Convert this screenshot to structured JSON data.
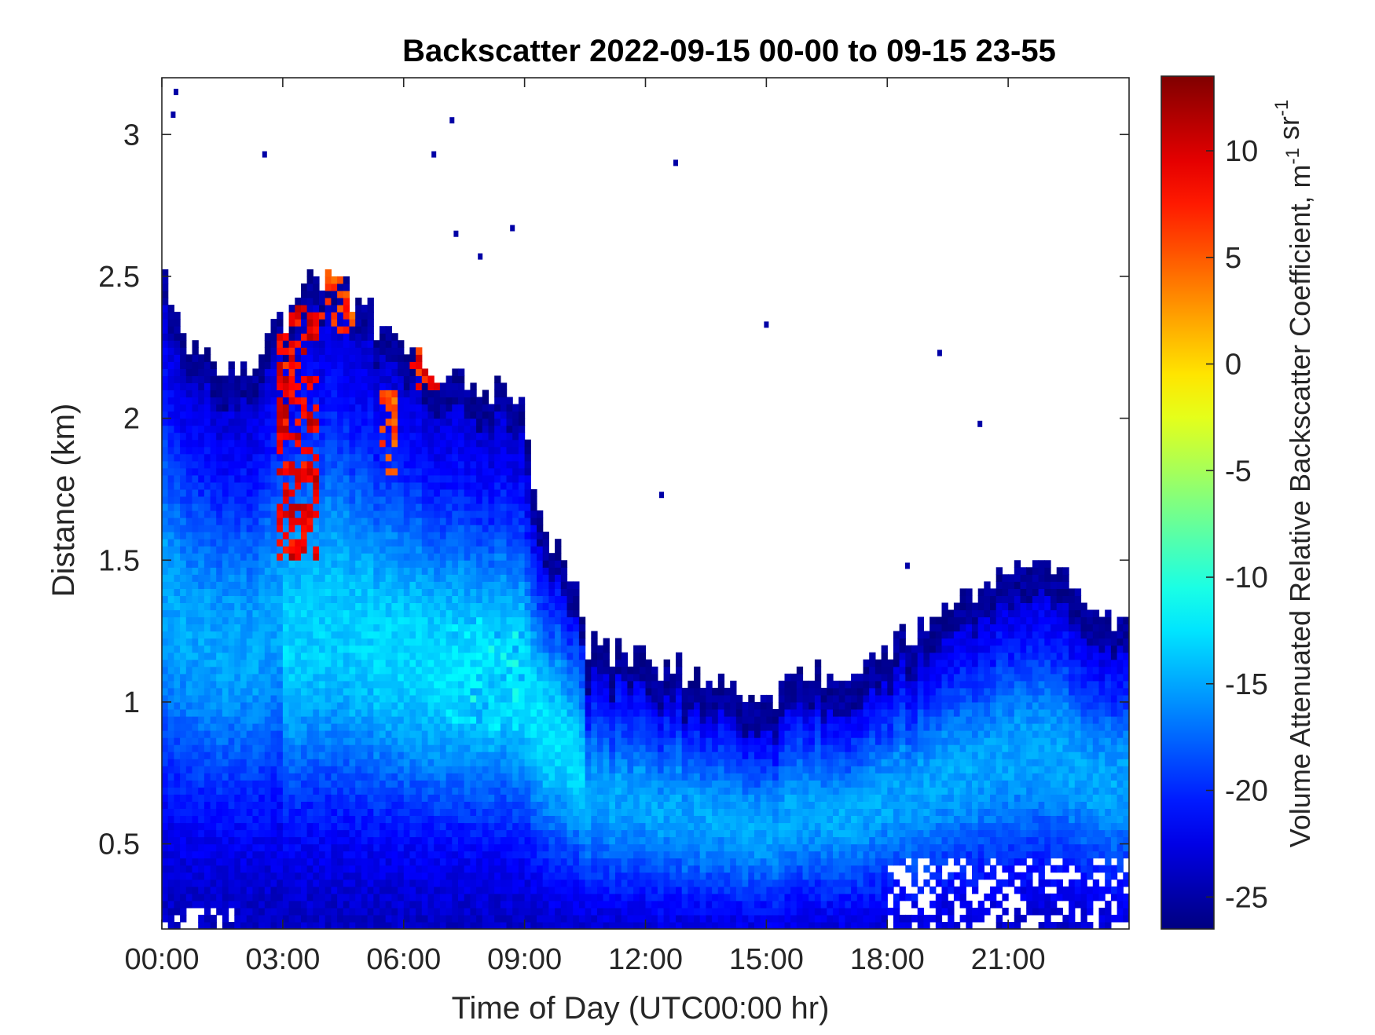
{
  "chart_data": {
    "type": "heatmap",
    "title": "Backscatter 2022-09-15 00-00 to 09-15 23-55",
    "xlabel": "Time of Day (UTC00:00 hr)",
    "ylabel": "Distance (km)",
    "colorbar_label": "Volume Attenuated Relative Backscatter Coefficient, m",
    "colorbar_label_units": [
      {
        "base": "m",
        "exp": "-1"
      },
      {
        "base": "sr",
        "exp": "-1"
      }
    ],
    "xlim": [
      0,
      24
    ],
    "ylim": [
      0.2,
      3.2
    ],
    "clim": [
      -26.5,
      13.5
    ],
    "colormap": "jet",
    "x_ticks": [
      {
        "value": 0,
        "label": "00:00"
      },
      {
        "value": 3,
        "label": "03:00"
      },
      {
        "value": 6,
        "label": "06:00"
      },
      {
        "value": 9,
        "label": "09:00"
      },
      {
        "value": 12,
        "label": "12:00"
      },
      {
        "value": 15,
        "label": "15:00"
      },
      {
        "value": 18,
        "label": "18:00"
      },
      {
        "value": 21,
        "label": "21:00"
      }
    ],
    "y_ticks": [
      {
        "value": 0.5,
        "label": "0.5"
      },
      {
        "value": 1,
        "label": "1"
      },
      {
        "value": 1.5,
        "label": "1.5"
      },
      {
        "value": 2,
        "label": "2"
      },
      {
        "value": 2.5,
        "label": "2.5"
      },
      {
        "value": 3,
        "label": "3"
      }
    ],
    "colorbar_ticks": [
      {
        "value": 10,
        "label": "10"
      },
      {
        "value": 5,
        "label": "5"
      },
      {
        "value": 0,
        "label": "0"
      },
      {
        "value": -5,
        "label": "-5"
      },
      {
        "value": -10,
        "label": "-10"
      },
      {
        "value": -15,
        "label": "-15"
      },
      {
        "value": -20,
        "label": "-20"
      },
      {
        "value": -25,
        "label": "-25"
      }
    ],
    "signal_top_profile_km": [
      [
        0.0,
        2.55
      ],
      [
        0.5,
        2.3
      ],
      [
        1.0,
        2.2
      ],
      [
        2.0,
        2.2
      ],
      [
        2.5,
        2.25
      ],
      [
        3.0,
        2.35
      ],
      [
        3.5,
        2.45
      ],
      [
        4.0,
        2.5
      ],
      [
        5.0,
        2.4
      ],
      [
        5.5,
        2.3
      ],
      [
        6.0,
        2.25
      ],
      [
        7.0,
        2.15
      ],
      [
        8.0,
        2.1
      ],
      [
        9.0,
        2.05
      ],
      [
        9.3,
        1.7
      ],
      [
        9.8,
        1.55
      ],
      [
        10.3,
        1.4
      ],
      [
        10.5,
        1.2
      ],
      [
        11.0,
        1.2
      ],
      [
        12.0,
        1.15
      ],
      [
        13.0,
        1.1
      ],
      [
        14.0,
        1.08
      ],
      [
        15.0,
        0.98
      ],
      [
        16.0,
        1.1
      ],
      [
        17.0,
        1.08
      ],
      [
        18.0,
        1.2
      ],
      [
        19.0,
        1.28
      ],
      [
        20.0,
        1.38
      ],
      [
        21.0,
        1.48
      ],
      [
        22.0,
        1.48
      ],
      [
        23.0,
        1.35
      ],
      [
        24.0,
        1.3
      ]
    ],
    "enhanced_layers": [
      {
        "x_from": 2.9,
        "x_to": 3.9,
        "y_from": 1.5,
        "y_to": 2.4,
        "value": 9
      },
      {
        "x_from": 3.9,
        "x_to": 4.8,
        "y_from": 2.3,
        "y_to": 2.55,
        "value": 6
      },
      {
        "x_from": 5.4,
        "x_to": 5.8,
        "y_from": 1.8,
        "y_to": 2.1,
        "value": 6
      },
      {
        "x_from": 6.1,
        "x_to": 6.9,
        "y_from": 2.1,
        "y_to": 2.25,
        "value": 8
      },
      {
        "x_from": 7.0,
        "x_to": 9.0,
        "y_from": 0.9,
        "y_to": 1.3,
        "value": -13
      }
    ],
    "isolated_points": [
      {
        "x": 0.35,
        "y": 3.15
      },
      {
        "x": 0.28,
        "y": 3.07
      },
      {
        "x": 2.55,
        "y": 2.93
      },
      {
        "x": 7.2,
        "y": 3.05
      },
      {
        "x": 6.75,
        "y": 2.93
      },
      {
        "x": 12.75,
        "y": 2.9
      },
      {
        "x": 8.7,
        "y": 2.67
      },
      {
        "x": 7.3,
        "y": 2.65
      },
      {
        "x": 7.9,
        "y": 2.57
      },
      {
        "x": 15.0,
        "y": 2.33
      },
      {
        "x": 19.3,
        "y": 2.23
      },
      {
        "x": 20.3,
        "y": 1.98
      },
      {
        "x": 12.4,
        "y": 1.73
      },
      {
        "x": 18.5,
        "y": 1.48
      }
    ]
  }
}
